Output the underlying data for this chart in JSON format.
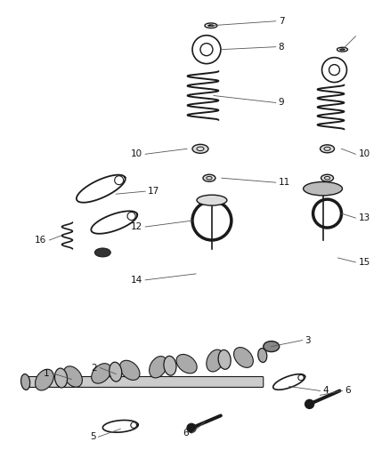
{
  "bg_color": "#ffffff",
  "part_color": "#1a1a1a",
  "line_color": "#555555",
  "label_color": "#111111",
  "fig_width": 4.38,
  "fig_height": 5.33,
  "dpi": 100
}
